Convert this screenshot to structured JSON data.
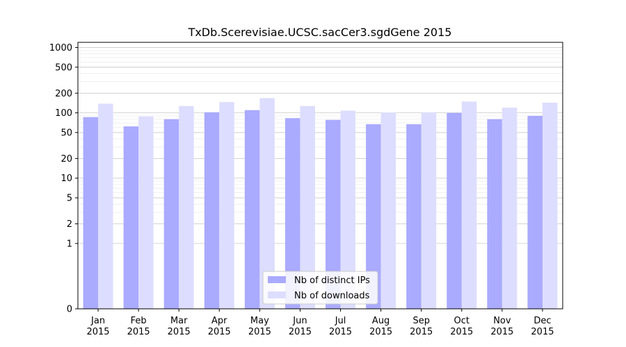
{
  "chart_data": {
    "type": "bar",
    "title": "TxDb.Scerevisiae.UCSC.sacCer3.sgdGene 2015",
    "xlabel": "",
    "ylabel": "",
    "y_scale": "symlog",
    "y_ticks": [
      0,
      1,
      2,
      5,
      10,
      20,
      50,
      100,
      200,
      500,
      1000
    ],
    "y_tick_labels": [
      "0",
      "1",
      "2",
      "5",
      "10",
      "20",
      "50",
      "100",
      "200",
      "500",
      "1000"
    ],
    "ylim": [
      0,
      1200
    ],
    "grid": true,
    "legend_position": "bottom-center",
    "categories": [
      [
        "Jan",
        "2015"
      ],
      [
        "Feb",
        "2015"
      ],
      [
        "Mar",
        "2015"
      ],
      [
        "Apr",
        "2015"
      ],
      [
        "May",
        "2015"
      ],
      [
        "Jun",
        "2015"
      ],
      [
        "Jul",
        "2015"
      ],
      [
        "Aug",
        "2015"
      ],
      [
        "Sep",
        "2015"
      ],
      [
        "Oct",
        "2015"
      ],
      [
        "Nov",
        "2015"
      ],
      [
        "Dec",
        "2015"
      ]
    ],
    "series": [
      {
        "name": "Nb of distinct IPs",
        "color": "#aaaaff",
        "values": [
          86,
          62,
          80,
          102,
          110,
          83,
          78,
          67,
          67,
          100,
          80,
          90
        ]
      },
      {
        "name": "Nb of downloads",
        "color": "#ddddff",
        "values": [
          138,
          88,
          127,
          146,
          168,
          127,
          108,
          101,
          102,
          149,
          120,
          143
        ]
      }
    ]
  }
}
